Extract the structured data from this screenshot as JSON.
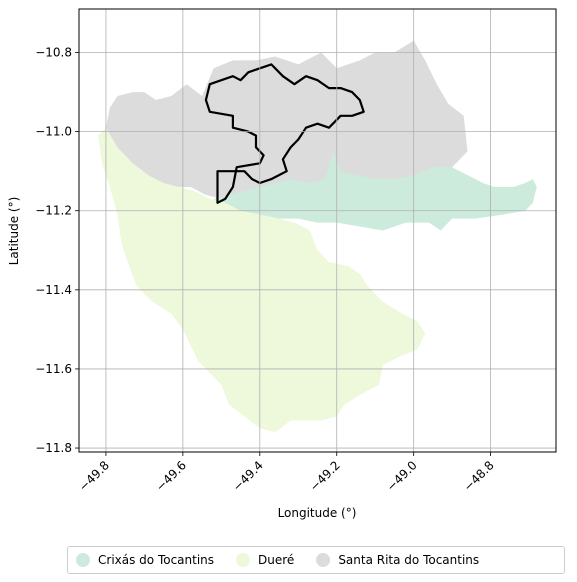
{
  "chart_data": {
    "type": "map",
    "title": "",
    "xlabel": "Longitude (°)",
    "ylabel": "Latitude (°)",
    "xlim": [
      -49.87,
      -48.63
    ],
    "ylim": [
      -11.81,
      -10.69
    ],
    "x_ticks": [
      -49.8,
      -49.6,
      -49.4,
      -49.2,
      -49.0,
      -48.8
    ],
    "x_tick_labels": [
      "−49.8",
      "−49.6",
      "−49.4",
      "−49.2",
      "−49.0",
      "−48.8"
    ],
    "y_ticks": [
      -10.8,
      -11.0,
      -11.2,
      -11.4,
      -11.6,
      -11.8
    ],
    "y_tick_labels": [
      "−10.8",
      "−11.0",
      "−11.2",
      "−11.4",
      "−11.6",
      "−11.8"
    ],
    "grid": true,
    "legend_position": "bottom",
    "regions": [
      {
        "name": "Santa Rita do Tocantins",
        "color": "#dcdcdc",
        "polygon": [
          [
            -49.8,
            -10.99
          ],
          [
            -49.79,
            -10.94
          ],
          [
            -49.77,
            -10.91
          ],
          [
            -49.73,
            -10.9
          ],
          [
            -49.7,
            -10.9
          ],
          [
            -49.67,
            -10.92
          ],
          [
            -49.63,
            -10.91
          ],
          [
            -49.59,
            -10.88
          ],
          [
            -49.55,
            -10.91
          ],
          [
            -49.52,
            -10.84
          ],
          [
            -49.47,
            -10.82
          ],
          [
            -49.41,
            -10.82
          ],
          [
            -49.36,
            -10.81
          ],
          [
            -49.3,
            -10.83
          ],
          [
            -49.24,
            -10.8
          ],
          [
            -49.2,
            -10.84
          ],
          [
            -49.14,
            -10.82
          ],
          [
            -49.1,
            -10.8
          ],
          [
            -49.05,
            -10.8
          ],
          [
            -49.0,
            -10.77
          ],
          [
            -48.97,
            -10.82
          ],
          [
            -48.94,
            -10.88
          ],
          [
            -48.91,
            -10.93
          ],
          [
            -48.87,
            -10.96
          ],
          [
            -48.86,
            -11.05
          ],
          [
            -48.91,
            -11.1
          ],
          [
            -48.95,
            -11.1
          ],
          [
            -49.0,
            -11.12
          ],
          [
            -49.05,
            -11.13
          ],
          [
            -49.1,
            -11.13
          ],
          [
            -49.15,
            -11.13
          ],
          [
            -49.19,
            -11.14
          ],
          [
            -49.21,
            -11.07
          ],
          [
            -49.23,
            -11.14
          ],
          [
            -49.27,
            -11.15
          ],
          [
            -49.32,
            -11.15
          ],
          [
            -49.36,
            -11.14
          ],
          [
            -49.4,
            -11.15
          ],
          [
            -49.44,
            -11.17
          ],
          [
            -49.48,
            -11.16
          ],
          [
            -49.5,
            -11.17
          ],
          [
            -49.54,
            -11.16
          ],
          [
            -49.58,
            -11.14
          ],
          [
            -49.62,
            -11.14
          ],
          [
            -49.66,
            -11.13
          ],
          [
            -49.7,
            -11.12
          ],
          [
            -49.73,
            -11.09
          ],
          [
            -49.77,
            -11.05
          ],
          [
            -49.8,
            -11.03
          ]
        ]
      },
      {
        "name": "Crixás do Tocantins",
        "color": "#cdebdc",
        "polygon": [
          [
            -49.52,
            -11.17
          ],
          [
            -49.48,
            -11.16
          ],
          [
            -49.44,
            -11.15
          ],
          [
            -49.4,
            -11.14
          ],
          [
            -49.36,
            -11.13
          ],
          [
            -49.32,
            -11.12
          ],
          [
            -49.27,
            -11.13
          ],
          [
            -49.23,
            -11.12
          ],
          [
            -49.21,
            -11.05
          ],
          [
            -49.19,
            -11.1
          ],
          [
            -49.15,
            -11.11
          ],
          [
            -49.1,
            -11.12
          ],
          [
            -49.05,
            -11.12
          ],
          [
            -49.0,
            -11.11
          ],
          [
            -48.95,
            -11.09
          ],
          [
            -48.9,
            -11.09
          ],
          [
            -48.86,
            -11.11
          ],
          [
            -48.82,
            -11.13
          ],
          [
            -48.79,
            -11.14
          ],
          [
            -48.74,
            -11.14
          ],
          [
            -48.71,
            -11.13
          ],
          [
            -48.69,
            -11.12
          ],
          [
            -48.68,
            -11.14
          ],
          [
            -48.69,
            -11.18
          ],
          [
            -48.71,
            -11.2
          ],
          [
            -48.77,
            -11.21
          ],
          [
            -48.84,
            -11.22
          ],
          [
            -48.9,
            -11.22
          ],
          [
            -48.93,
            -11.25
          ],
          [
            -48.96,
            -11.23
          ],
          [
            -49.02,
            -11.23
          ],
          [
            -49.08,
            -11.25
          ],
          [
            -49.14,
            -11.24
          ],
          [
            -49.2,
            -11.23
          ],
          [
            -49.25,
            -11.23
          ],
          [
            -49.3,
            -11.22
          ],
          [
            -49.35,
            -11.22
          ],
          [
            -49.4,
            -11.21
          ],
          [
            -49.45,
            -11.2
          ],
          [
            -49.49,
            -11.19
          ]
        ]
      },
      {
        "name": "Dueré",
        "color": "#eef8db",
        "polygon": [
          [
            -49.82,
            -11.01
          ],
          [
            -49.8,
            -10.99
          ],
          [
            -49.77,
            -11.04
          ],
          [
            -49.73,
            -11.08
          ],
          [
            -49.69,
            -11.11
          ],
          [
            -49.65,
            -11.13
          ],
          [
            -49.61,
            -11.14
          ],
          [
            -49.57,
            -11.15
          ],
          [
            -49.53,
            -11.17
          ],
          [
            -49.49,
            -11.18
          ],
          [
            -49.45,
            -11.2
          ],
          [
            -49.4,
            -11.21
          ],
          [
            -49.35,
            -11.22
          ],
          [
            -49.31,
            -11.23
          ],
          [
            -49.27,
            -11.25
          ],
          [
            -49.25,
            -11.3
          ],
          [
            -49.22,
            -11.33
          ],
          [
            -49.17,
            -11.34
          ],
          [
            -49.14,
            -11.36
          ],
          [
            -49.12,
            -11.39
          ],
          [
            -49.08,
            -11.43
          ],
          [
            -49.03,
            -11.46
          ],
          [
            -48.99,
            -11.48
          ],
          [
            -48.97,
            -11.51
          ],
          [
            -48.99,
            -11.55
          ],
          [
            -49.04,
            -11.57
          ],
          [
            -49.08,
            -11.59
          ],
          [
            -49.09,
            -11.64
          ],
          [
            -49.13,
            -11.66
          ],
          [
            -49.18,
            -11.69
          ],
          [
            -49.2,
            -11.72
          ],
          [
            -49.24,
            -11.73
          ],
          [
            -49.28,
            -11.73
          ],
          [
            -49.32,
            -11.73
          ],
          [
            -49.36,
            -11.76
          ],
          [
            -49.4,
            -11.75
          ],
          [
            -49.44,
            -11.72
          ],
          [
            -49.48,
            -11.69
          ],
          [
            -49.5,
            -11.64
          ],
          [
            -49.53,
            -11.61
          ],
          [
            -49.56,
            -11.58
          ],
          [
            -49.58,
            -11.54
          ],
          [
            -49.6,
            -11.5
          ],
          [
            -49.63,
            -11.46
          ],
          [
            -49.68,
            -11.43
          ],
          [
            -49.72,
            -11.39
          ],
          [
            -49.74,
            -11.34
          ],
          [
            -49.76,
            -11.28
          ],
          [
            -49.77,
            -11.21
          ],
          [
            -49.79,
            -11.14
          ],
          [
            -49.81,
            -11.08
          ]
        ]
      }
    ],
    "highlight_outline": {
      "stroke": "#000000",
      "polygon": [
        [
          -49.51,
          -11.18
        ],
        [
          -49.51,
          -11.1
        ],
        [
          -49.44,
          -11.1
        ],
        [
          -49.42,
          -11.12
        ],
        [
          -49.4,
          -11.13
        ],
        [
          -49.37,
          -11.12
        ],
        [
          -49.35,
          -11.11
        ],
        [
          -49.33,
          -11.1
        ],
        [
          -49.34,
          -11.07
        ],
        [
          -49.32,
          -11.04
        ],
        [
          -49.3,
          -11.02
        ],
        [
          -49.28,
          -10.99
        ],
        [
          -49.25,
          -10.98
        ],
        [
          -49.22,
          -10.99
        ],
        [
          -49.19,
          -10.96
        ],
        [
          -49.16,
          -10.96
        ],
        [
          -49.13,
          -10.95
        ],
        [
          -49.14,
          -10.92
        ],
        [
          -49.16,
          -10.9
        ],
        [
          -49.19,
          -10.89
        ],
        [
          -49.22,
          -10.89
        ],
        [
          -49.25,
          -10.87
        ],
        [
          -49.28,
          -10.86
        ],
        [
          -49.31,
          -10.88
        ],
        [
          -49.34,
          -10.86
        ],
        [
          -49.36,
          -10.84
        ],
        [
          -49.37,
          -10.83
        ],
        [
          -49.4,
          -10.84
        ],
        [
          -49.43,
          -10.85
        ],
        [
          -49.45,
          -10.87
        ],
        [
          -49.47,
          -10.86
        ],
        [
          -49.5,
          -10.87
        ],
        [
          -49.53,
          -10.88
        ],
        [
          -49.54,
          -10.92
        ],
        [
          -49.53,
          -10.95
        ],
        [
          -49.47,
          -10.96
        ],
        [
          -49.47,
          -10.99
        ],
        [
          -49.43,
          -11.0
        ],
        [
          -49.41,
          -11.01
        ],
        [
          -49.41,
          -11.04
        ],
        [
          -49.39,
          -11.06
        ],
        [
          -49.4,
          -11.08
        ],
        [
          -49.46,
          -11.09
        ],
        [
          -49.47,
          -11.14
        ],
        [
          -49.49,
          -11.17
        ]
      ]
    }
  },
  "legend": {
    "items": [
      {
        "label": "Crixás do Tocantins",
        "color": "#cdebdc"
      },
      {
        "label": "Dueré",
        "color": "#eef8db"
      },
      {
        "label": "Santa Rita do Tocantins",
        "color": "#dcdcdc"
      }
    ]
  }
}
